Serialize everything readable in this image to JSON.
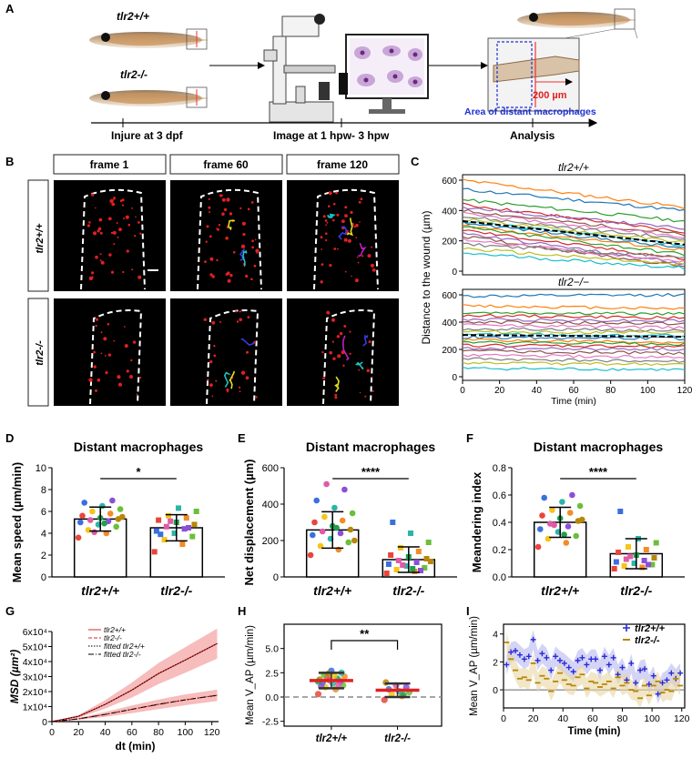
{
  "panel_letters": [
    "A",
    "B",
    "C",
    "D",
    "E",
    "F",
    "G",
    "H",
    "I"
  ],
  "panel_a": {
    "wt_label": "tlr2+/+",
    "ko_label": "tlr2-/-",
    "step1": "Injure at 3 dpf",
    "step2": "Image at 1 hpw- 3 hpw",
    "step3": "Analysis",
    "dist_label": "200 µm",
    "area_label": "Area of distant macrophages"
  },
  "panel_b": {
    "frames": [
      "frame 1",
      "frame 60",
      "frame 120"
    ],
    "rows": [
      "tlr2+/+",
      "tlr2-/-"
    ]
  },
  "colors": {
    "wt": "#e8453c",
    "ko_red": "#e8453c",
    "blue": "#3a3ae0",
    "tan": "#b8860b",
    "shade_red": "#f4a6a6",
    "shade_blue": "#b7b7f0",
    "shade_tan": "#e8d5a0"
  },
  "chart_data": [
    {
      "panel": "C",
      "type": "line",
      "titles": [
        "tlr2+/+",
        "tlr2−/−"
      ],
      "xlabel": "Time (min)",
      "ylabel": "Distance to the wound (µm)",
      "xlim": [
        0,
        120
      ],
      "ylim": [
        0,
        600
      ],
      "xticks": [
        "0",
        "20",
        "40",
        "60",
        "80",
        "100",
        "120"
      ],
      "yticks": [
        "0",
        "200",
        "400",
        "600"
      ],
      "top_starts": [
        540,
        600,
        470,
        440,
        420,
        400,
        380,
        360,
        345,
        330,
        320,
        300,
        290,
        270,
        250,
        230,
        210,
        180,
        150,
        120
      ],
      "top_ends": [
        400,
        420,
        330,
        260,
        280,
        240,
        230,
        210,
        190,
        170,
        150,
        140,
        110,
        80,
        50,
        30,
        60,
        90,
        40,
        20
      ],
      "bottom_starts": [
        590,
        520,
        470,
        450,
        420,
        400,
        380,
        350,
        330,
        310,
        290,
        270,
        250,
        230,
        210,
        190,
        160,
        130,
        100,
        60
      ],
      "bottom_ends": [
        600,
        500,
        460,
        430,
        410,
        390,
        360,
        340,
        320,
        300,
        280,
        250,
        240,
        220,
        200,
        170,
        140,
        110,
        90,
        50
      ],
      "mean_label": "mean"
    },
    {
      "panel": "D",
      "type": "bar",
      "title": "Distant macrophages",
      "ylabel": "Mean speed (µm/min)",
      "categories": [
        "tlr2+/+",
        "tlr2-/-"
      ],
      "values": [
        5.3,
        4.5
      ],
      "errors": [
        1.1,
        1.2
      ],
      "ylim": [
        0,
        10
      ],
      "yticks": [
        "0",
        "2",
        "4",
        "6",
        "8",
        "10"
      ],
      "significance": "*",
      "points_wt": [
        3.6,
        4.0,
        4.3,
        4.6,
        4.8,
        5.0,
        5.1,
        5.2,
        5.3,
        5.4,
        5.6,
        5.8,
        6.0,
        6.2,
        6.5,
        6.8,
        7.0,
        4.1,
        5.5,
        4.9
      ],
      "points_ko": [
        2.3,
        3.0,
        3.4,
        3.7,
        4.0,
        4.2,
        4.4,
        4.6,
        4.8,
        5.0,
        5.2,
        5.4,
        5.6,
        6.0,
        6.3,
        3.9,
        4.5,
        5.1
      ]
    },
    {
      "panel": "E",
      "type": "bar",
      "title": "Distant macrophages",
      "ylabel": "Net displacement (µm)",
      "categories": [
        "tlr2+/+",
        "tlr2-/-"
      ],
      "values": [
        258,
        95
      ],
      "errors": [
        100,
        70
      ],
      "ylim": [
        0,
        600
      ],
      "yticks": [
        "0",
        "200",
        "400",
        "600"
      ],
      "significance": "****",
      "points_wt": [
        120,
        150,
        170,
        190,
        210,
        230,
        240,
        250,
        260,
        280,
        300,
        310,
        330,
        350,
        380,
        420,
        480,
        510,
        200,
        270
      ],
      "points_ko": [
        20,
        30,
        40,
        50,
        60,
        70,
        80,
        90,
        100,
        110,
        120,
        140,
        160,
        190,
        240,
        300,
        35,
        65,
        85,
        45
      ]
    },
    {
      "panel": "F",
      "type": "bar",
      "title": "Distant macrophages",
      "ylabel": "Meandering index",
      "categories": [
        "tlr2+/+",
        "tlr2-/-"
      ],
      "values": [
        0.4,
        0.17
      ],
      "errors": [
        0.11,
        0.11
      ],
      "ylim": [
        0,
        0.8
      ],
      "yticks": [
        "0.0",
        "0.2",
        "0.4",
        "0.6",
        "0.8"
      ],
      "significance": "****",
      "points_wt": [
        0.22,
        0.25,
        0.28,
        0.3,
        0.33,
        0.35,
        0.37,
        0.39,
        0.41,
        0.43,
        0.45,
        0.47,
        0.49,
        0.52,
        0.55,
        0.58,
        0.6,
        0.38,
        0.42,
        0.31
      ],
      "points_ko": [
        0.06,
        0.07,
        0.08,
        0.09,
        0.1,
        0.11,
        0.12,
        0.13,
        0.14,
        0.16,
        0.18,
        0.2,
        0.22,
        0.25,
        0.28,
        0.48,
        0.09,
        0.15
      ]
    },
    {
      "panel": "G",
      "type": "line",
      "ylabel": "MSD (µm²)",
      "xlabel": "dt (min)",
      "xlim": [
        0,
        125
      ],
      "ylim": [
        0,
        60000
      ],
      "xticks": [
        "0",
        "20",
        "40",
        "60",
        "80",
        "100",
        "120"
      ],
      "yticks": [
        "0",
        "1x10⁴",
        "2x10⁴",
        "3x10⁴",
        "4x10⁴",
        "5x10⁴",
        "6x10⁴"
      ],
      "legend": [
        "tlr2+/+",
        "tlr2-/-",
        "fitted tlr2+/+",
        "fitted tlr2-/-"
      ],
      "series": [
        {
          "name": "tlr2+/+",
          "x": [
            0,
            20,
            40,
            60,
            80,
            100,
            124
          ],
          "y": [
            0,
            3500,
            11500,
            21000,
            32000,
            41000,
            52000
          ],
          "band": [
            0,
            900,
            2800,
            5000,
            7000,
            8500,
            10000
          ]
        },
        {
          "name": "tlr2-/-",
          "x": [
            0,
            20,
            40,
            60,
            80,
            100,
            124
          ],
          "y": [
            0,
            1800,
            4800,
            8200,
            11500,
            14500,
            17500
          ],
          "band": [
            0,
            600,
            1600,
            2600,
            3200,
            3600,
            3800
          ]
        }
      ]
    },
    {
      "panel": "H",
      "type": "scatter",
      "ylabel": "Mean V_AP (µm/min)",
      "categories": [
        "tlr2+/+",
        "tlr2-/-"
      ],
      "means": [
        1.7,
        0.7
      ],
      "sd": [
        0.8,
        0.7
      ],
      "ylim": [
        -3,
        7.5
      ],
      "yticks": [
        "-2.5",
        "0.0",
        "2.5",
        "5.0"
      ],
      "significance": "**",
      "points_wt": [
        0.3,
        0.8,
        1.0,
        1.2,
        1.4,
        1.5,
        1.6,
        1.7,
        1.8,
        1.9,
        2.0,
        2.1,
        2.2,
        2.3,
        2.5,
        2.7,
        1.1,
        1.3,
        2.4,
        1.6
      ],
      "points_ko": [
        -0.3,
        0.1,
        0.3,
        0.5,
        0.6,
        0.8,
        1.0,
        1.2,
        1.5,
        0.2
      ]
    },
    {
      "panel": "I",
      "type": "line",
      "ylabel": "Mean V_AP (µm/min)",
      "xlabel": "Time (min)",
      "xlim": [
        0,
        122
      ],
      "ylim": [
        -1.3,
        4.7
      ],
      "xticks": [
        "0",
        "20",
        "40",
        "60",
        "80",
        "100",
        "120"
      ],
      "yticks": [
        "0",
        "2",
        "4"
      ],
      "legend": [
        "tlr2+/+",
        "tlr2-/-"
      ],
      "series": [
        {
          "name": "tlr2+/+",
          "x": [
            2,
            5,
            8,
            11,
            14,
            17,
            20,
            23,
            26,
            29,
            32,
            35,
            38,
            41,
            44,
            47,
            50,
            53,
            56,
            59,
            62,
            65,
            68,
            71,
            74,
            77,
            80,
            83,
            86,
            89,
            92,
            95,
            98,
            101,
            104,
            107,
            110,
            113,
            116,
            119
          ],
          "y": [
            1.8,
            2.7,
            2.8,
            2.5,
            2.2,
            2.4,
            3.6,
            2.1,
            2.6,
            2.3,
            1.4,
            2.4,
            2.1,
            1.9,
            1.6,
            1.3,
            2.1,
            2.3,
            1.8,
            2.2,
            2.2,
            1.4,
            2.4,
            1.8,
            2.3,
            1.1,
            1.6,
            0.7,
            1.9,
            0.5,
            1.4,
            1.5,
            0.4,
            1.0,
            -0.3,
            0.5,
            0.7,
            1.2,
            0.8,
            1.2
          ]
        },
        {
          "name": "tlr2-/-",
          "x": [
            2,
            5,
            8,
            11,
            14,
            17,
            20,
            23,
            26,
            29,
            32,
            35,
            38,
            41,
            44,
            47,
            50,
            53,
            56,
            59,
            62,
            65,
            68,
            71,
            74,
            77,
            80,
            83,
            86,
            89,
            92,
            95,
            98,
            101,
            104,
            107,
            110,
            113,
            116,
            119
          ],
          "y": [
            3.4,
            2.2,
            1.4,
            0.8,
            0.9,
            0.7,
            1.9,
            0.5,
            1.0,
            0.8,
            -0.1,
            0.6,
            1.2,
            0.7,
            0.4,
            0.3,
            0.9,
            1.1,
            0.1,
            0.6,
            0.5,
            0.2,
            0.4,
            0.6,
            0.1,
            0.9,
            0.3,
            0.5,
            0.0,
            -0.1,
            -0.6,
            0.3,
            -0.4,
            0.3,
            0.6,
            -0.2,
            0.0,
            -0.1,
            0.8,
            0.3
          ]
        }
      ]
    }
  ]
}
